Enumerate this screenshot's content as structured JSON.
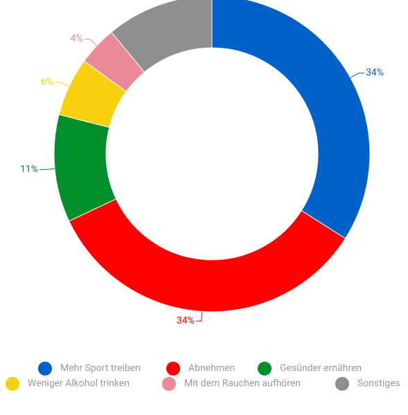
{
  "chart_data": {
    "type": "pie",
    "categories": [
      "Mehr Sport treiben",
      "Abnehmen",
      "Gesünder ernähren",
      "Weniger Alkohol trinken",
      "Mit dem Rauchen aufhören",
      "Sonstiges"
    ],
    "values": [
      34,
      34,
      11,
      6,
      4,
      11
    ],
    "value_labels": [
      "34%",
      "34%",
      "11%",
      "6%",
      "4%",
      null
    ],
    "colors": [
      "#0061c9",
      "#ff0000",
      "#008f2a",
      "#f7d10e",
      "#eb8a96",
      "#8f8f8f"
    ],
    "donut": true
  }
}
